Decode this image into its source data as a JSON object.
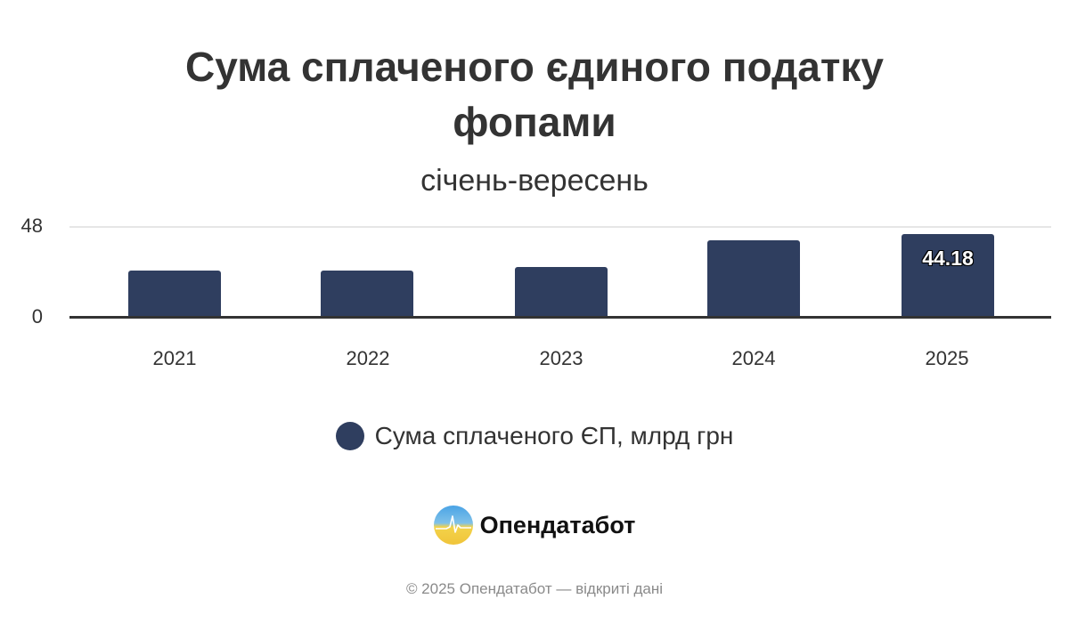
{
  "header": {
    "title_line1": "Сума сплаченого єдиного податку",
    "title_line2": "фопами",
    "subtitle": "січень-вересень"
  },
  "chart_data": {
    "type": "bar",
    "title": "Сума сплаченого єдиного податку фопами",
    "subtitle": "січень-вересень",
    "categories": [
      "2021",
      "2022",
      "2023",
      "2024",
      "2025"
    ],
    "series": [
      {
        "name": "Сума сплаченого ЄП, млрд грн",
        "values": [
          24.8,
          24.6,
          26.5,
          41.0,
          44.18
        ],
        "color": "#2f3e5f"
      }
    ],
    "data_labels": [
      null,
      null,
      null,
      null,
      "44.18"
    ],
    "xlabel": "",
    "ylabel": "",
    "yticks": [
      "0",
      "48"
    ],
    "ylim": [
      0,
      48
    ],
    "grid": true,
    "legend_position": "bottom"
  },
  "axis": {
    "y_top": "48",
    "y_bottom": "0"
  },
  "legend": {
    "label": "Сума сплаченого ЄП, млрд грн",
    "color": "#2f3e5f"
  },
  "brand": {
    "name": "Опендатабот"
  },
  "footer": {
    "text": "© 2025 Опендатабот — відкриті дані"
  }
}
